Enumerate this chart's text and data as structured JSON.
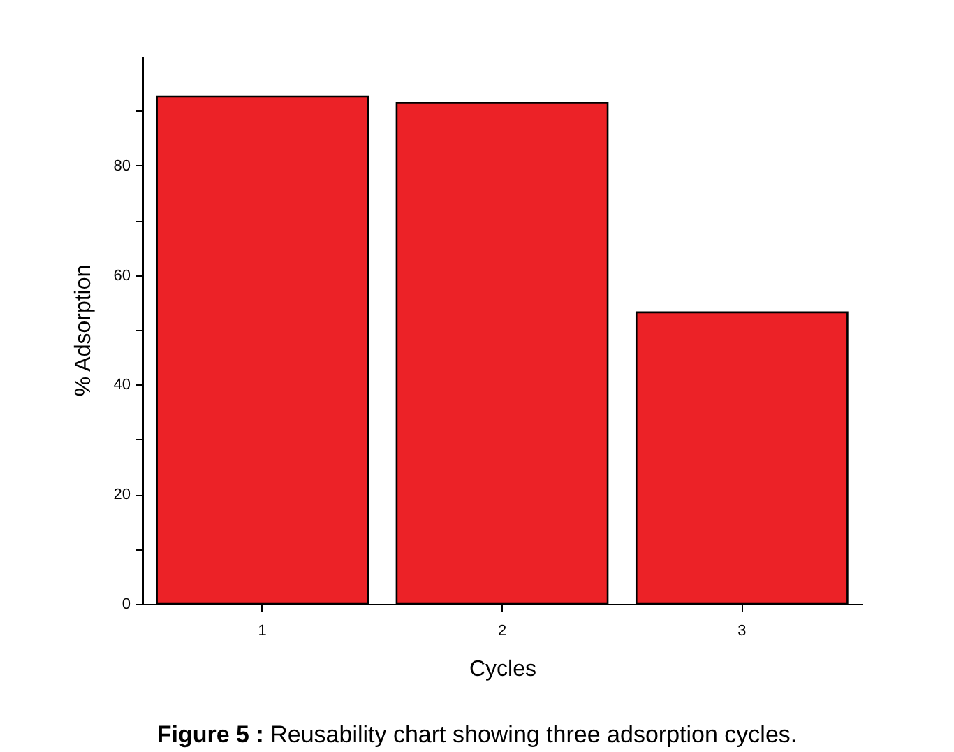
{
  "chart_data": {
    "type": "bar",
    "xlabel": "Cycles",
    "ylabel": "% Adsorption",
    "categories": [
      "1",
      "2",
      "3"
    ],
    "values": [
      92.6,
      91.4,
      53.2
    ],
    "color": "#ec2227",
    "ylim": [
      0,
      100
    ],
    "yticks": [
      0,
      {
        "value": 10,
        "label": null
      },
      20,
      {
        "value": 30,
        "label": null
      },
      40,
      {
        "value": 50,
        "label": null
      },
      60,
      {
        "value": 70,
        "label": null
      },
      80,
      {
        "value": 90,
        "label": null
      }
    ],
    "grid": false,
    "annotations": [
      "Figure 5 : Reusability chart showing three adsorption cycles."
    ]
  }
}
